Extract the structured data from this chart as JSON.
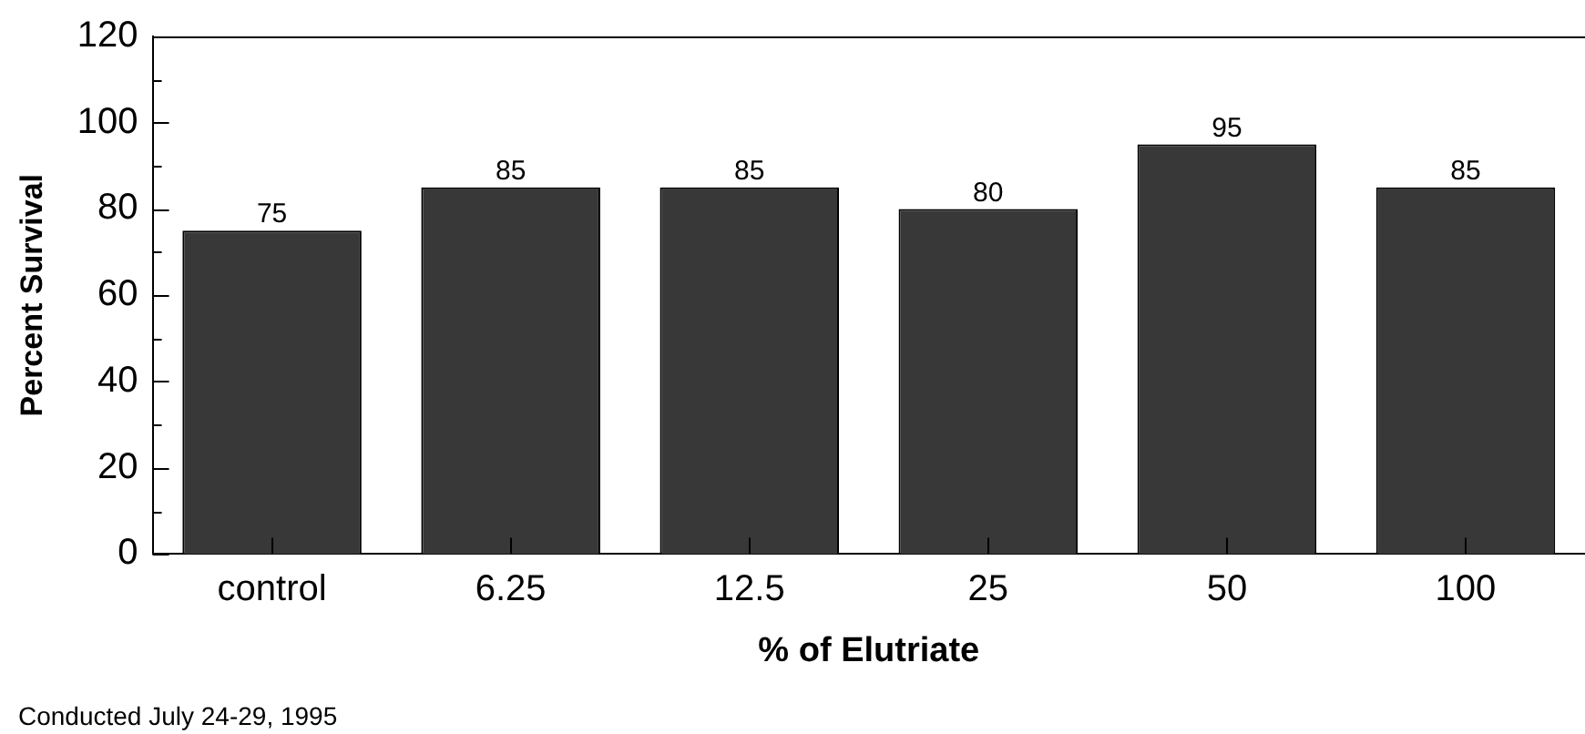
{
  "chart_data": {
    "type": "bar",
    "xlabel": "% of Elutriate",
    "ylabel": "Percent Survival",
    "categories": [
      "control",
      "6.25",
      "12.5",
      "25",
      "50",
      "100"
    ],
    "values": [
      75,
      85,
      85,
      80,
      95,
      85
    ],
    "color": "#383838",
    "ylim": [
      0,
      120
    ],
    "yticks": [
      0,
      {
        "value": 10,
        "label": null
      },
      20,
      {
        "value": 30,
        "label": null
      },
      40,
      {
        "value": 50,
        "label": null
      },
      60,
      {
        "value": 70,
        "label": null
      },
      80,
      {
        "value": 90,
        "label": null
      },
      100,
      {
        "value": 110,
        "label": null
      },
      120
    ],
    "grid": false,
    "legend": false,
    "data_labels": true,
    "annotations": [
      "Conducted July 24-29, 1995"
    ]
  }
}
